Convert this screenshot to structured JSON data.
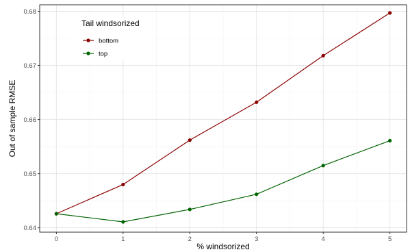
{
  "chart_data": {
    "type": "line",
    "title": "",
    "xlabel": "% windsorized",
    "ylabel": "Out of sample RMSE",
    "x": [
      0,
      1,
      2,
      3,
      4,
      5
    ],
    "xlim": [
      -0.25,
      5.25
    ],
    "ylim": [
      0.6392,
      0.6812
    ],
    "x_ticks": [
      0,
      1,
      2,
      3,
      4,
      5
    ],
    "y_ticks": [
      0.64,
      0.65,
      0.66,
      0.67,
      0.68
    ],
    "x_tick_labels": [
      "0",
      "1",
      "2",
      "3",
      "4",
      "5"
    ],
    "y_tick_labels": [
      "0.64",
      "0.65",
      "0.66",
      "0.67",
      "0.68"
    ],
    "grid": true,
    "legend": {
      "title": "Tail windsorized",
      "placement": "top-left inside"
    },
    "series": [
      {
        "name": "bottom",
        "color": "#8b0000",
        "values": [
          0.6426,
          0.648,
          0.6562,
          0.6632,
          0.6718,
          0.6797
        ]
      },
      {
        "name": "top",
        "color": "#006400",
        "values": [
          0.6426,
          0.6411,
          0.6434,
          0.6462,
          0.6515,
          0.6561
        ]
      }
    ]
  }
}
